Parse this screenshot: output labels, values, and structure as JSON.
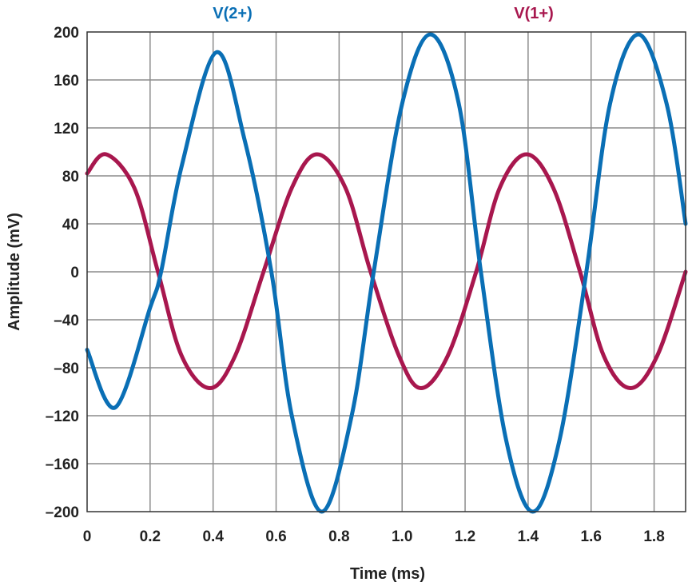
{
  "chart_data": {
    "type": "line",
    "title": "",
    "xlabel": "Time (ms)",
    "ylabel": "Amplitude  (mV)",
    "xlim": [
      0,
      1.9
    ],
    "ylim": [
      -200,
      200
    ],
    "grid": true,
    "x_ticks": [
      0,
      0.2,
      0.4,
      0.6,
      0.8,
      1.0,
      1.2,
      1.4,
      1.6,
      1.8
    ],
    "x_tick_labels": [
      "0",
      "0.2",
      "0.4",
      "0.6",
      "0.8",
      "1.0",
      "1.2",
      "1.4",
      "1.6",
      "1.8"
    ],
    "y_ticks": [
      200,
      160,
      120,
      80,
      40,
      0,
      -40,
      -80,
      -120,
      -160,
      -200
    ],
    "y_tick_labels": [
      "200",
      "160",
      "120",
      "80",
      "40",
      "0",
      "–40",
      "–80",
      "–120",
      "–160",
      "–200"
    ],
    "series": [
      {
        "name": "V(2+)",
        "color": "#0a6fb5",
        "x": [
          0,
          0.09,
          0.2,
          0.235,
          0.3,
          0.41,
          0.5,
          0.585,
          0.65,
          0.745,
          0.84,
          0.91,
          1.0,
          1.09,
          1.18,
          1.25,
          1.33,
          1.415,
          1.5,
          1.585,
          1.66,
          1.75,
          1.84,
          1.9
        ],
        "y": [
          -65,
          -113,
          -30,
          0,
          88,
          183,
          110,
          0,
          -120,
          -200,
          -120,
          0,
          140,
          198,
          140,
          0,
          -140,
          -200,
          -140,
          0,
          140,
          198,
          140,
          40
        ]
      },
      {
        "name": "V(1+)",
        "color": "#a8174e",
        "x": [
          0,
          0.06,
          0.15,
          0.225,
          0.3,
          0.39,
          0.47,
          0.56,
          0.65,
          0.73,
          0.82,
          0.9,
          0.99,
          1.06,
          1.145,
          1.235,
          1.31,
          1.395,
          1.48,
          1.565,
          1.64,
          1.725,
          1.81,
          1.9
        ],
        "y": [
          82,
          98,
          70,
          0,
          -70,
          -97,
          -70,
          0,
          70,
          98,
          70,
          0,
          -70,
          -97,
          -70,
          0,
          70,
          98,
          70,
          0,
          -70,
          -97,
          -70,
          0
        ]
      }
    ]
  }
}
